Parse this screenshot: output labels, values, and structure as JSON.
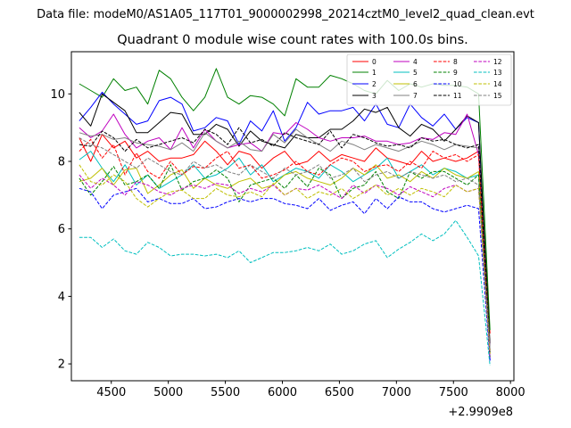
{
  "figure": {
    "suptitle": "Data file: modeM0/AS1A05_117T01_9000002998_20214cztM0_level2_quad_clean.evt"
  },
  "chart_data": {
    "type": "line",
    "title": "Quadrant 0 module wise count rates with 100.0s bins.",
    "xlabel": "",
    "ylabel": "",
    "x_offset_label": "+2.9909e8",
    "xlim": [
      4150,
      8030
    ],
    "ylim": [
      1.5,
      11.25
    ],
    "x_ticks": [
      4500,
      5000,
      5500,
      6000,
      6500,
      7000,
      7500,
      8000
    ],
    "y_ticks": [
      2,
      4,
      6,
      8,
      10
    ],
    "grid": false,
    "legend_position": "top-right",
    "x": [
      4220,
      4320,
      4420,
      4520,
      4620,
      4720,
      4820,
      4920,
      5020,
      5120,
      5220,
      5320,
      5420,
      5520,
      5620,
      5720,
      5820,
      5920,
      6020,
      6120,
      6220,
      6320,
      6420,
      6520,
      6620,
      6720,
      6820,
      6920,
      7020,
      7120,
      7220,
      7320,
      7420,
      7520,
      7620,
      7720,
      7820
    ],
    "series": [
      {
        "name": "0",
        "color": "#ff0000",
        "dash": "solid",
        "values": [
          8.7,
          8.0,
          8.8,
          8.4,
          8.6,
          8.1,
          8.3,
          8.0,
          8.1,
          8.1,
          8.2,
          8.6,
          8.3,
          7.9,
          8.3,
          8.2,
          7.8,
          8.1,
          8.3,
          7.9,
          8.0,
          8.3,
          8.0,
          8.2,
          8.1,
          8.0,
          8.4,
          8.1,
          8.0,
          7.9,
          8.3,
          8.0,
          8.1,
          8.0,
          8.1,
          8.3,
          2.9
        ]
      },
      {
        "name": "1",
        "color": "#008000",
        "dash": "solid",
        "values": [
          10.3,
          10.1,
          9.9,
          10.45,
          10.1,
          10.2,
          9.7,
          10.7,
          10.45,
          9.9,
          9.5,
          9.9,
          10.75,
          9.9,
          9.7,
          9.95,
          9.9,
          9.7,
          9.35,
          10.45,
          10.2,
          10.2,
          10.55,
          10.45,
          10.3,
          10.1,
          10.0,
          10.4,
          10.1,
          10.3,
          10.2,
          10.3,
          10.25,
          10.25,
          10.2,
          10.0,
          3.0
        ]
      },
      {
        "name": "2",
        "color": "#0000ff",
        "dash": "solid",
        "values": [
          9.2,
          9.6,
          10.05,
          9.7,
          9.4,
          9.1,
          9.2,
          9.8,
          9.9,
          9.7,
          8.9,
          9.0,
          9.3,
          9.2,
          8.5,
          9.2,
          8.9,
          9.5,
          8.6,
          9.0,
          9.75,
          9.4,
          9.5,
          9.5,
          9.6,
          9.2,
          9.7,
          9.1,
          9.0,
          9.7,
          9.3,
          9.05,
          9.4,
          8.95,
          9.3,
          9.15,
          2.1
        ]
      },
      {
        "name": "3",
        "color": "#000000",
        "dash": "solid",
        "values": [
          9.45,
          9.05,
          10.0,
          9.75,
          9.5,
          8.85,
          8.85,
          9.15,
          9.45,
          9.4,
          8.8,
          8.8,
          9.1,
          8.95,
          8.45,
          8.9,
          8.6,
          8.5,
          8.4,
          8.8,
          8.7,
          8.7,
          8.95,
          8.95,
          9.2,
          9.55,
          9.45,
          9.6,
          9.0,
          8.75,
          9.1,
          8.95,
          8.6,
          8.95,
          9.35,
          9.15,
          2.6
        ]
      },
      {
        "name": "4",
        "color": "#bf00bf",
        "dash": "solid",
        "values": [
          9.0,
          8.7,
          8.9,
          9.4,
          8.8,
          8.4,
          8.6,
          8.7,
          8.35,
          9.0,
          8.4,
          8.95,
          8.6,
          8.4,
          8.5,
          8.55,
          8.3,
          8.85,
          8.8,
          9.15,
          8.95,
          8.7,
          8.6,
          8.7,
          8.7,
          8.75,
          8.6,
          8.6,
          8.5,
          8.55,
          8.7,
          8.65,
          8.85,
          8.8,
          9.4,
          8.2,
          2.4
        ]
      },
      {
        "name": "5",
        "color": "#00bfbf",
        "dash": "solid",
        "values": [
          8.05,
          8.3,
          7.8,
          7.4,
          7.9,
          7.3,
          7.6,
          7.2,
          7.4,
          7.6,
          7.9,
          7.5,
          7.6,
          7.8,
          8.1,
          7.6,
          7.9,
          7.4,
          7.6,
          7.8,
          7.7,
          7.5,
          7.9,
          7.7,
          7.4,
          7.6,
          7.8,
          8.1,
          7.5,
          7.7,
          7.9,
          7.6,
          7.8,
          7.7,
          7.5,
          7.6,
          2.3
        ]
      },
      {
        "name": "6",
        "color": "#bfbf00",
        "dash": "solid",
        "values": [
          7.4,
          7.5,
          7.8,
          7.3,
          7.75,
          7.8,
          7.05,
          7.3,
          7.6,
          7.75,
          7.2,
          7.5,
          7.3,
          7.2,
          7.4,
          7.5,
          7.2,
          7.3,
          7.6,
          7.7,
          7.5,
          7.4,
          7.3,
          7.5,
          7.8,
          7.6,
          7.9,
          7.5,
          7.6,
          7.4,
          7.7,
          7.5,
          7.8,
          7.6,
          7.5,
          7.7,
          2.3
        ]
      },
      {
        "name": "7",
        "color": "#808080",
        "dash": "solid",
        "values": [
          8.85,
          8.75,
          8.8,
          8.65,
          8.7,
          8.55,
          8.5,
          8.45,
          8.35,
          8.55,
          8.3,
          8.85,
          8.6,
          8.4,
          8.6,
          8.35,
          8.3,
          8.8,
          8.55,
          8.95,
          8.7,
          8.5,
          8.3,
          8.6,
          8.5,
          8.35,
          8.5,
          8.4,
          8.3,
          8.45,
          8.6,
          8.5,
          8.35,
          8.5,
          8.45,
          8.4,
          2.4
        ]
      },
      {
        "name": "8",
        "color": "#ff0000",
        "dash": "dashed",
        "values": [
          8.3,
          8.65,
          8.1,
          8.5,
          7.6,
          8.25,
          7.7,
          7.5,
          8.0,
          7.6,
          7.85,
          7.8,
          8.1,
          8.3,
          7.8,
          7.9,
          7.5,
          7.6,
          7.75,
          8.0,
          7.7,
          7.6,
          7.9,
          8.1,
          8.0,
          7.7,
          7.85,
          7.9,
          7.7,
          8.0,
          7.8,
          8.3,
          8.1,
          8.2,
          8.0,
          8.2,
          2.2
        ]
      },
      {
        "name": "9",
        "color": "#008000",
        "dash": "dashed",
        "values": [
          7.5,
          7.0,
          7.4,
          7.85,
          7.3,
          7.4,
          7.6,
          7.2,
          7.9,
          7.15,
          7.4,
          7.5,
          7.75,
          7.5,
          6.8,
          7.3,
          7.4,
          7.5,
          7.2,
          7.6,
          7.25,
          7.8,
          7.6,
          6.9,
          7.2,
          7.3,
          7.7,
          7.1,
          6.9,
          7.7,
          7.5,
          7.7,
          7.7,
          7.5,
          7.3,
          7.6,
          2.2
        ]
      },
      {
        "name": "10",
        "color": "#0000ff",
        "dash": "dashed",
        "values": [
          7.2,
          7.1,
          6.6,
          7.0,
          7.1,
          7.2,
          6.8,
          6.9,
          6.75,
          6.75,
          6.9,
          6.6,
          6.65,
          6.8,
          6.9,
          6.8,
          6.9,
          6.9,
          6.75,
          6.7,
          6.6,
          6.9,
          6.55,
          6.7,
          6.8,
          6.45,
          6.9,
          6.6,
          6.95,
          6.8,
          6.8,
          6.6,
          6.5,
          6.6,
          6.7,
          6.6,
          2.1
        ]
      },
      {
        "name": "11",
        "color": "#000000",
        "dash": "dashed",
        "values": [
          8.5,
          8.45,
          8.9,
          8.7,
          8.3,
          8.65,
          8.4,
          8.5,
          8.6,
          8.7,
          8.55,
          8.95,
          8.8,
          8.5,
          9.0,
          8.55,
          8.65,
          8.45,
          8.85,
          8.7,
          8.6,
          8.5,
          8.9,
          8.4,
          8.8,
          8.7,
          8.55,
          8.45,
          8.5,
          8.4,
          8.7,
          8.6,
          8.65,
          8.5,
          8.4,
          8.5,
          2.3
        ]
      },
      {
        "name": "12",
        "color": "#bf00bf",
        "dash": "dashed",
        "values": [
          7.6,
          7.2,
          7.5,
          7.3,
          7.0,
          7.4,
          7.3,
          7.1,
          7.0,
          7.2,
          7.3,
          7.2,
          7.35,
          7.3,
          7.05,
          7.2,
          7.1,
          7.3,
          7.0,
          7.2,
          7.15,
          7.3,
          7.1,
          6.9,
          7.3,
          7.05,
          7.3,
          7.2,
          7.0,
          7.25,
          7.1,
          6.95,
          7.2,
          7.3,
          7.1,
          7.2,
          2.2
        ]
      },
      {
        "name": "13",
        "color": "#00bfbf",
        "dash": "dashed",
        "values": [
          5.75,
          5.75,
          5.45,
          5.7,
          5.35,
          5.25,
          5.6,
          5.45,
          5.2,
          5.25,
          5.25,
          5.2,
          5.25,
          5.15,
          5.35,
          5.0,
          5.15,
          5.3,
          5.3,
          5.35,
          5.45,
          5.35,
          5.55,
          5.25,
          5.35,
          5.55,
          5.65,
          5.15,
          5.4,
          5.6,
          5.85,
          5.65,
          5.85,
          6.25,
          5.75,
          5.2,
          1.95
        ]
      },
      {
        "name": "14",
        "color": "#bfbf00",
        "dash": "dashed",
        "values": [
          7.9,
          7.4,
          7.3,
          7.6,
          7.4,
          6.9,
          6.65,
          6.9,
          7.1,
          7.15,
          6.9,
          6.9,
          7.2,
          7.0,
          6.95,
          7.1,
          6.95,
          7.35,
          7.0,
          7.2,
          6.9,
          7.1,
          7.0,
          7.2,
          6.9,
          7.1,
          7.3,
          7.0,
          7.2,
          7.0,
          7.2,
          7.1,
          6.95,
          7.3,
          7.1,
          7.2,
          2.3
        ]
      },
      {
        "name": "15",
        "color": "#808080",
        "dash": "dashed",
        "values": [
          8.7,
          8.5,
          8.4,
          8.2,
          8.0,
          7.8,
          8.1,
          7.9,
          7.7,
          7.6,
          8.0,
          7.8,
          7.9,
          7.7,
          7.6,
          7.9,
          7.7,
          7.5,
          7.8,
          7.6,
          7.7,
          7.9,
          7.5,
          7.6,
          7.8,
          7.4,
          7.6,
          7.7,
          7.5,
          7.7,
          7.6,
          7.5,
          7.6,
          7.4,
          7.5,
          7.3,
          2.4
        ]
      }
    ]
  }
}
